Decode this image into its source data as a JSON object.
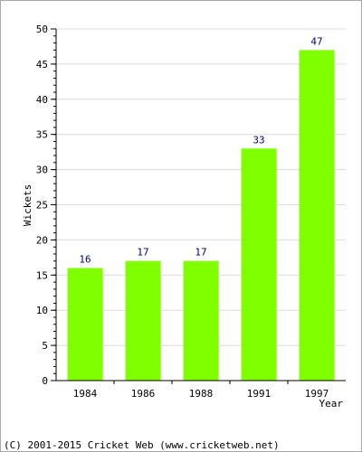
{
  "chart_data": {
    "type": "bar",
    "categories": [
      "1984",
      "1986",
      "1988",
      "1991",
      "1997"
    ],
    "values": [
      16,
      17,
      17,
      33,
      47
    ],
    "data_labels": [
      "16",
      "17",
      "17",
      "33",
      "47"
    ],
    "ylabel": "Wickets",
    "xlabel": "Year",
    "ylim": [
      0,
      50
    ],
    "yticks": [
      "0",
      "5",
      "10",
      "15",
      "20",
      "25",
      "30",
      "35",
      "40",
      "45",
      "50"
    ],
    "grid": true,
    "bar_color": "#80ff00",
    "label_color": "#000080"
  },
  "footer": {
    "text": "(C) 2001-2015 Cricket Web (www.cricketweb.net)"
  }
}
